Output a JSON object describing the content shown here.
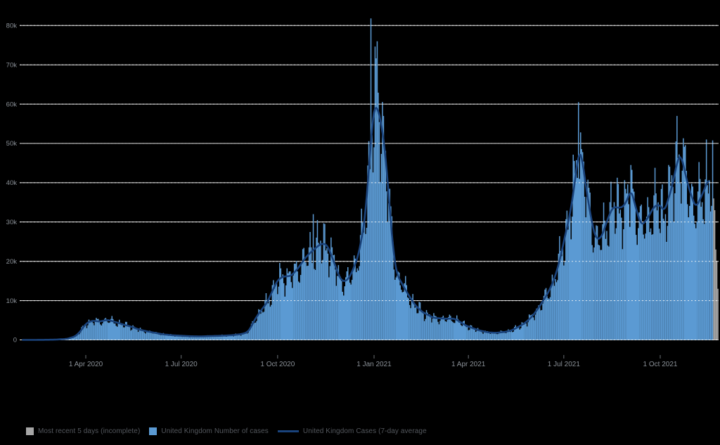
{
  "chart_data": {
    "type": "bar",
    "title": "",
    "background": "#000000",
    "grid": "horizontal-white",
    "legend_position": "bottom-left",
    "colors": {
      "bars": "#5b9ad3",
      "average_line": "#1a437c",
      "incomplete_bars": "#a8a8a8",
      "gridline": "#f2f2f2",
      "axis_label": "#8a9097",
      "tick_mark": "#6a6f75",
      "legend_text": "#53575d"
    },
    "legend": {
      "items": [
        {
          "label": "Most recent 5 days (incomplete)",
          "swatch": "square",
          "color": "#a6a6a6"
        },
        {
          "label": "United Kingdom Number of cases",
          "swatch": "square",
          "color": "#5b9ad3"
        },
        {
          "label": "United Kingdom Cases (7-day average",
          "swatch": "line",
          "color": "#1a437c"
        }
      ]
    },
    "y_axis": {
      "ticks": [
        "0",
        "10k",
        "20k",
        "30k",
        "40k",
        "50k",
        "60k",
        "70k",
        "80k"
      ],
      "tick_values": [
        0,
        10000,
        20000,
        30000,
        40000,
        50000,
        60000,
        70000,
        80000
      ],
      "range": [
        0,
        82000
      ]
    },
    "x_axis": {
      "ticks": [
        {
          "label": "1 Apr 2020",
          "day": 60
        },
        {
          "label": "1 Jul 2020",
          "day": 151
        },
        {
          "label": "1 Oct 2020",
          "day": 243
        },
        {
          "label": "1 Jan 2021",
          "day": 335
        },
        {
          "label": "1 Apr 2021",
          "day": 425
        },
        {
          "label": "1 Jul 2021",
          "day": 516
        },
        {
          "label": "1 Oct 2021",
          "day": 608
        }
      ]
    },
    "series": {
      "bars_name": "United Kingdom Number of cases",
      "average_name": "United Kingdom Cases (7-day average",
      "days_blue": 659,
      "average_points": [
        [
          0,
          0
        ],
        [
          15,
          10
        ],
        [
          30,
          60
        ],
        [
          42,
          250
        ],
        [
          50,
          900
        ],
        [
          55,
          2200
        ],
        [
          60,
          4100
        ],
        [
          64,
          4700
        ],
        [
          68,
          4900
        ],
        [
          72,
          4650
        ],
        [
          76,
          4800
        ],
        [
          80,
          5100
        ],
        [
          84,
          4900
        ],
        [
          90,
          4400
        ],
        [
          96,
          3900
        ],
        [
          103,
          3400
        ],
        [
          110,
          2700
        ],
        [
          118,
          2200
        ],
        [
          126,
          1800
        ],
        [
          134,
          1400
        ],
        [
          142,
          1200
        ],
        [
          151,
          1050
        ],
        [
          160,
          930
        ],
        [
          170,
          890
        ],
        [
          180,
          980
        ],
        [
          190,
          1060
        ],
        [
          200,
          1200
        ],
        [
          208,
          1450
        ],
        [
          214,
          1900
        ],
        [
          217,
          2900
        ],
        [
          220,
          4600
        ],
        [
          226,
          7100
        ],
        [
          233,
          9500
        ],
        [
          240,
          13600
        ],
        [
          243,
          15200
        ],
        [
          248,
          16100
        ],
        [
          256,
          16300
        ],
        [
          263,
          18400
        ],
        [
          270,
          21100
        ],
        [
          277,
          22900
        ],
        [
          283,
          24200
        ],
        [
          287,
          24600
        ],
        [
          291,
          23800
        ],
        [
          297,
          19600
        ],
        [
          303,
          15300
        ],
        [
          308,
          14800
        ],
        [
          313,
          16600
        ],
        [
          320,
          21400
        ],
        [
          326,
          30000
        ],
        [
          330,
          43000
        ],
        [
          334,
          57500
        ],
        [
          336,
          59800
        ],
        [
          339,
          58500
        ],
        [
          342,
          55000
        ],
        [
          346,
          47000
        ],
        [
          350,
          33000
        ],
        [
          354,
          21000
        ],
        [
          357,
          16500
        ],
        [
          367,
          11800
        ],
        [
          374,
          8900
        ],
        [
          381,
          7100
        ],
        [
          392,
          5600
        ],
        [
          403,
          5400
        ],
        [
          412,
          5400
        ],
        [
          423,
          3600
        ],
        [
          434,
          2500
        ],
        [
          444,
          1900
        ],
        [
          451,
          1800
        ],
        [
          459,
          2000
        ],
        [
          466,
          2400
        ],
        [
          472,
          3200
        ],
        [
          479,
          4300
        ],
        [
          486,
          6000
        ],
        [
          493,
          8600
        ],
        [
          500,
          11500
        ],
        [
          506,
          14800
        ],
        [
          511,
          19000
        ],
        [
          516,
          25000
        ],
        [
          522,
          32100
        ],
        [
          526,
          39000
        ],
        [
          530,
          47800
        ],
        [
          533,
          47300
        ],
        [
          536,
          41000
        ],
        [
          538,
          37500
        ],
        [
          543,
          29500
        ],
        [
          547,
          25500
        ],
        [
          552,
          26100
        ],
        [
          558,
          30900
        ],
        [
          563,
          33900
        ],
        [
          568,
          33600
        ],
        [
          573,
          33900
        ],
        [
          578,
          36500
        ],
        [
          580,
          38600
        ],
        [
          585,
          33200
        ],
        [
          590,
          29100
        ],
        [
          595,
          30500
        ],
        [
          602,
          33900
        ],
        [
          607,
          34500
        ],
        [
          612,
          32700
        ],
        [
          619,
          38600
        ],
        [
          625,
          46400
        ],
        [
          628,
          47000
        ],
        [
          634,
          39800
        ],
        [
          639,
          35700
        ],
        [
          642,
          33600
        ],
        [
          649,
          37500
        ],
        [
          654,
          41100
        ]
      ],
      "bar_spikes": [
        [
          277,
          32000
        ],
        [
          281,
          30500
        ],
        [
          288,
          29500
        ],
        [
          332,
          81800
        ],
        [
          338,
          76000
        ],
        [
          344,
          57000
        ],
        [
          530,
          60500
        ],
        [
          580,
          44500
        ],
        [
          624,
          57000
        ],
        [
          652,
          51000
        ]
      ],
      "incomplete_days": [
        [
          659,
          36000
        ],
        [
          660,
          33000
        ],
        [
          661,
          23000
        ],
        [
          662,
          20000
        ],
        [
          663,
          13000
        ]
      ],
      "bar_weekday_factors": [
        1.12,
        1.16,
        1.06,
        0.98,
        0.92,
        0.78,
        0.86
      ]
    }
  }
}
